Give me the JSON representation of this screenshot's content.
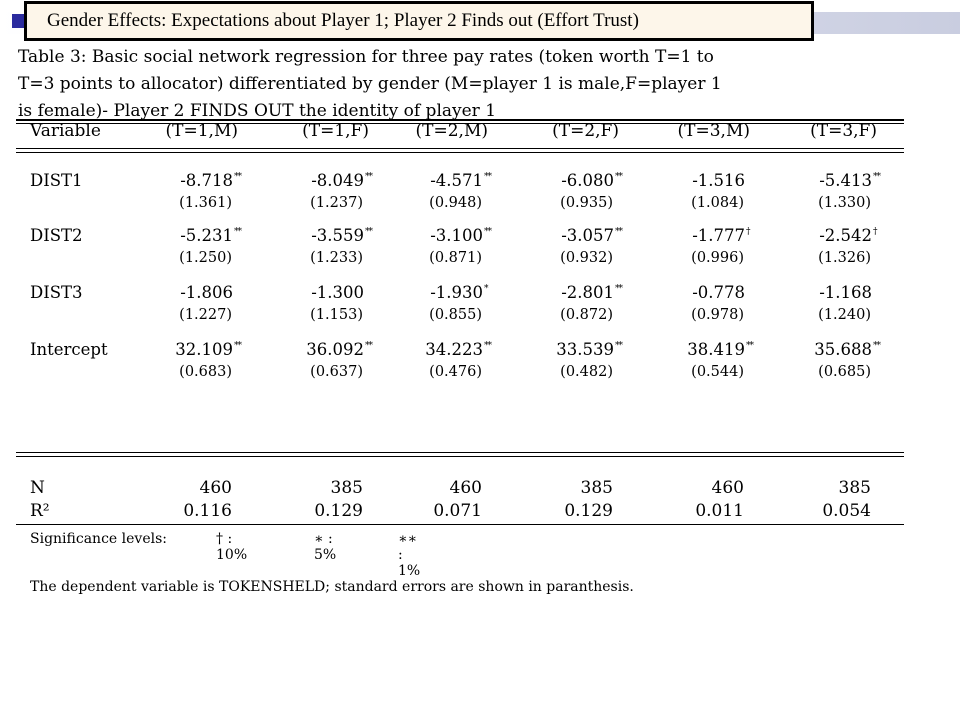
{
  "slide": {
    "title": "Gender Effects: Expectations about Player 1; Player 2 Finds out (Effort Trust)"
  },
  "table": {
    "caption_lines": [
      "Table 3:  Basic social network regression for three pay rates (token worth T=1 to",
      "T=3 points to allocator) differentiated by gender (M=player 1 is male,F=player 1",
      "is female)- Player 2 FINDS OUT the identity of player 1"
    ],
    "variable_header": "Variable",
    "columns": [
      "(T=1,M)",
      "(T=1,F)",
      "(T=2,M)",
      "(T=2,F)",
      "(T=3,M)",
      "(T=3,F)"
    ],
    "rows": [
      {
        "name": "DIST1",
        "coefs": [
          [
            "-8.718",
            "**"
          ],
          [
            "-8.049",
            "**"
          ],
          [
            "-4.571",
            "**"
          ],
          [
            "-6.080",
            "**"
          ],
          [
            "-1.516",
            ""
          ],
          [
            "-5.413",
            "**"
          ]
        ],
        "se": [
          "(1.361)",
          "(1.237)",
          "(0.948)",
          "(0.935)",
          "(1.084)",
          "(1.330)"
        ]
      },
      {
        "name": "DIST2",
        "coefs": [
          [
            "-5.231",
            "**"
          ],
          [
            "-3.559",
            "**"
          ],
          [
            "-3.100",
            "**"
          ],
          [
            "-3.057",
            "**"
          ],
          [
            "-1.777",
            "†"
          ],
          [
            "-2.542",
            "†"
          ]
        ],
        "se": [
          "(1.250)",
          "(1.233)",
          "(0.871)",
          "(0.932)",
          "(0.996)",
          "(1.326)"
        ]
      },
      {
        "name": "DIST3",
        "coefs": [
          [
            "-1.806",
            ""
          ],
          [
            "-1.300",
            ""
          ],
          [
            "-1.930",
            "*"
          ],
          [
            "-2.801",
            "**"
          ],
          [
            "-0.778",
            ""
          ],
          [
            "-1.168",
            ""
          ]
        ],
        "se": [
          "(1.227)",
          "(1.153)",
          "(0.855)",
          "(0.872)",
          "(0.978)",
          "(1.240)"
        ]
      },
      {
        "name": "Intercept",
        "coefs": [
          [
            "32.109",
            "**"
          ],
          [
            "36.092",
            "**"
          ],
          [
            "34.223",
            "**"
          ],
          [
            "33.539",
            "**"
          ],
          [
            "38.419",
            "**"
          ],
          [
            "35.688",
            "**"
          ]
        ],
        "se": [
          "(0.683)",
          "(0.637)",
          "(0.476)",
          "(0.482)",
          "(0.544)",
          "(0.685)"
        ]
      }
    ],
    "stats": [
      {
        "label": "N",
        "values": [
          "460",
          "385",
          "460",
          "385",
          "460",
          "385"
        ]
      },
      {
        "label": "R²",
        "values": [
          "0.116",
          "0.129",
          "0.071",
          "0.129",
          "0.011",
          "0.054"
        ]
      }
    ],
    "significance": {
      "label": "Significance levels:",
      "levels": [
        "† : 10%",
        "∗ : 5%",
        "∗∗ : 1%"
      ]
    },
    "note": "The dependent variable is TOKENSHELD; standard errors are shown in paranthesis."
  }
}
